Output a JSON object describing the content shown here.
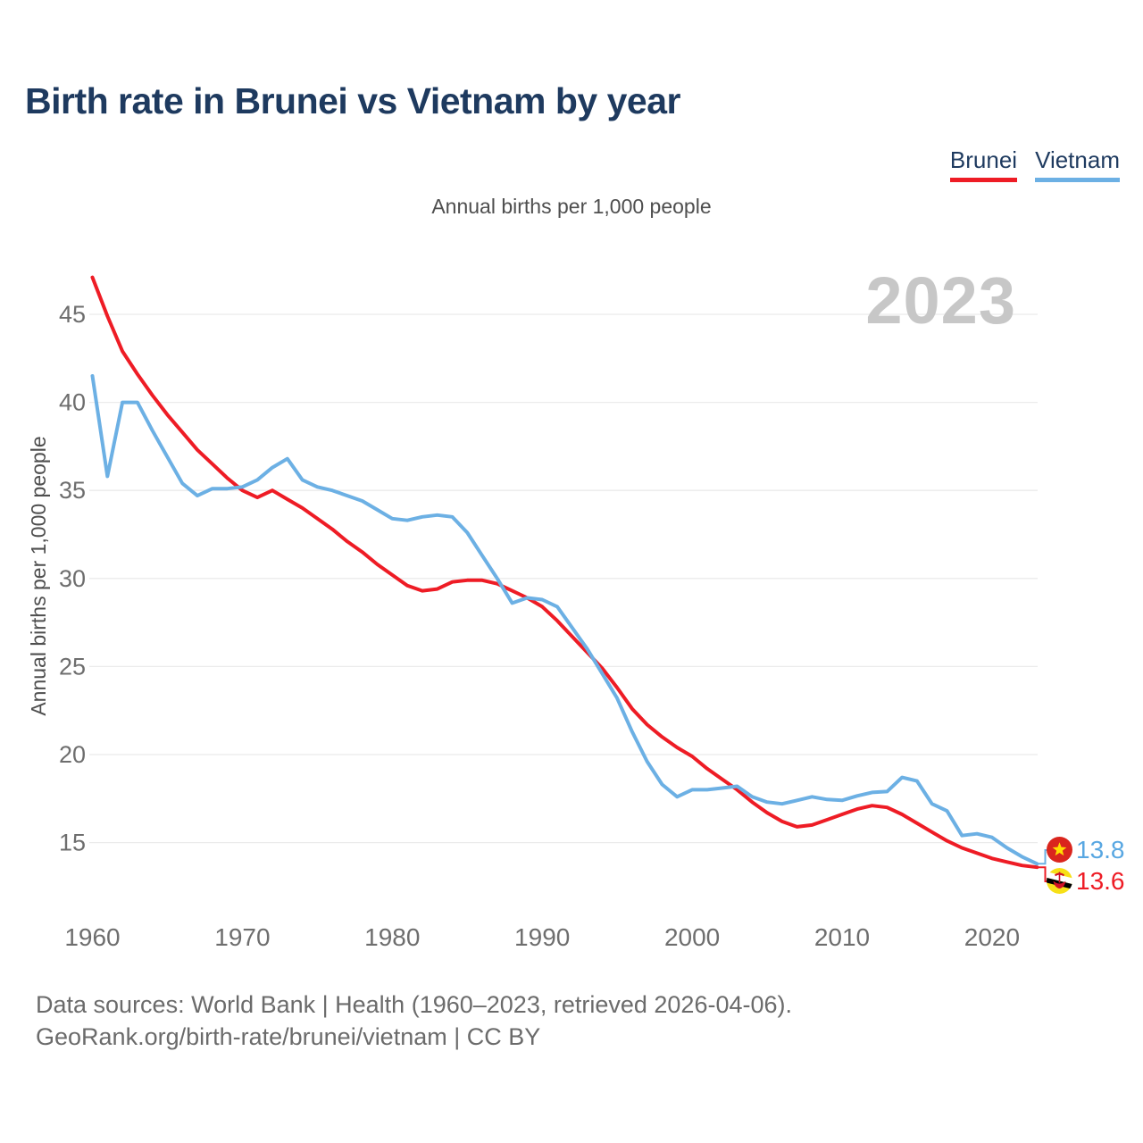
{
  "header": {
    "title": "Birth rate in Brunei vs Vietnam by year"
  },
  "legend": {
    "items": [
      {
        "id": "brunei",
        "label": "Brunei",
        "color": "#ee1c25"
      },
      {
        "id": "vietnam",
        "label": "Vietnam",
        "color": "#6cb0e4"
      }
    ]
  },
  "subtitle": "Annual births per 1,000 people",
  "watermark": "2023",
  "y_axis": {
    "label": "Annual births per 1,000 people"
  },
  "end_labels": {
    "vietnam": {
      "value": "13.8",
      "color": "#58a7e2",
      "flag": "vietnam-flag"
    },
    "brunei": {
      "value": "13.6",
      "color": "#ee1c25",
      "flag": "brunei-flag"
    }
  },
  "footer": {
    "line1": "Data sources: World Bank | Health (1960–2023, retrieved 2026-04-06).",
    "line2": "GeoRank.org/birth-rate/brunei/vietnam | CC BY"
  },
  "chart_data": {
    "type": "line",
    "title": "Birth rate in Brunei vs Vietnam by year",
    "subtitle": "Annual births per 1,000 people",
    "ylabel": "Annual births per 1,000 people",
    "xlabel": "",
    "grid": "horizontal",
    "legend_position": "top-right",
    "ylim": [
      13,
      48
    ],
    "y_ticks": [
      15,
      20,
      25,
      30,
      35,
      40,
      45
    ],
    "x_ticks": [
      1960,
      1970,
      1980,
      1990,
      2000,
      2010,
      2020
    ],
    "x": [
      1960,
      1961,
      1962,
      1963,
      1964,
      1965,
      1966,
      1967,
      1968,
      1969,
      1970,
      1971,
      1972,
      1973,
      1974,
      1975,
      1976,
      1977,
      1978,
      1979,
      1980,
      1981,
      1982,
      1983,
      1984,
      1985,
      1986,
      1987,
      1988,
      1989,
      1990,
      1991,
      1992,
      1993,
      1994,
      1995,
      1996,
      1997,
      1998,
      1999,
      2000,
      2001,
      2002,
      2003,
      2004,
      2005,
      2006,
      2007,
      2008,
      2009,
      2010,
      2011,
      2012,
      2013,
      2014,
      2015,
      2016,
      2017,
      2018,
      2019,
      2020,
      2021,
      2022,
      2023
    ],
    "series": [
      {
        "name": "Brunei",
        "color": "#ee1c25",
        "end_value": 13.6,
        "values": [
          47.1,
          44.9,
          42.9,
          41.6,
          40.4,
          39.3,
          38.3,
          37.3,
          36.5,
          35.7,
          35.0,
          34.6,
          35.0,
          34.5,
          34.0,
          33.4,
          32.8,
          32.1,
          31.5,
          30.8,
          30.2,
          29.6,
          29.3,
          29.4,
          29.8,
          29.9,
          29.9,
          29.7,
          29.3,
          28.9,
          28.4,
          27.6,
          26.7,
          25.8,
          24.9,
          23.8,
          22.6,
          21.7,
          21.0,
          20.4,
          19.9,
          19.2,
          18.6,
          18.0,
          17.3,
          16.7,
          16.2,
          15.9,
          16.0,
          16.3,
          16.6,
          16.9,
          17.1,
          17.0,
          16.6,
          16.1,
          15.6,
          15.1,
          14.7,
          14.4,
          14.1,
          13.9,
          13.7,
          13.6
        ]
      },
      {
        "name": "Vietnam",
        "color": "#6cb0e4",
        "end_value": 13.8,
        "values": [
          41.5,
          35.8,
          40.0,
          40.0,
          38.4,
          36.9,
          35.4,
          34.7,
          35.1,
          35.1,
          35.2,
          35.6,
          36.3,
          36.8,
          35.6,
          35.2,
          35.0,
          34.7,
          34.4,
          33.9,
          33.4,
          33.3,
          33.5,
          33.6,
          33.5,
          32.6,
          31.3,
          30.0,
          28.6,
          28.9,
          28.8,
          28.4,
          27.2,
          26.0,
          24.6,
          23.2,
          21.3,
          19.6,
          18.3,
          17.6,
          18.0,
          18.0,
          18.1,
          18.2,
          17.6,
          17.3,
          17.2,
          17.4,
          17.6,
          17.45,
          17.4,
          17.65,
          17.85,
          17.9,
          18.7,
          18.5,
          17.2,
          16.8,
          15.4,
          15.5,
          15.3,
          14.7,
          14.2,
          13.8
        ]
      }
    ]
  }
}
